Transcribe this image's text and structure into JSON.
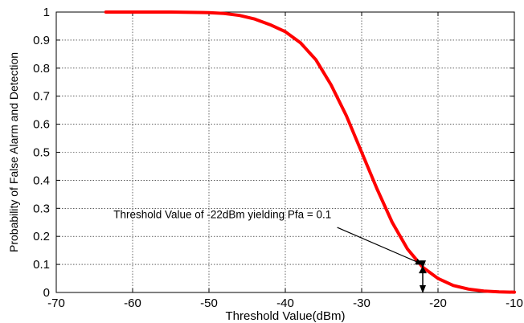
{
  "chart_data": {
    "type": "line",
    "title": "",
    "xlabel": "Threshold Value(dBm)",
    "ylabel": "Probability of False Alarm and Detection",
    "xlim": [
      -70,
      -10
    ],
    "ylim": [
      0,
      1
    ],
    "xticks": [
      -70,
      -60,
      -50,
      -40,
      -30,
      -20,
      -10
    ],
    "yticks": [
      0,
      0.1,
      0.2,
      0.3,
      0.4,
      0.5,
      0.6,
      0.7,
      0.8,
      0.9,
      1
    ],
    "grid": true,
    "line_color": "#ff0000",
    "series": [
      {
        "x": [
          -63.5,
          -60,
          -55,
          -50,
          -48,
          -46,
          -44,
          -42,
          -40,
          -38,
          -36,
          -34,
          -32,
          -30,
          -28,
          -26,
          -24,
          -22,
          -20,
          -18,
          -16,
          -14,
          -12,
          -10
        ],
        "y": [
          1.0,
          1.0,
          1.0,
          0.998,
          0.995,
          0.988,
          0.975,
          0.955,
          0.93,
          0.89,
          0.83,
          0.74,
          0.63,
          0.5,
          0.37,
          0.25,
          0.155,
          0.09,
          0.05,
          0.025,
          0.012,
          0.005,
          0.002,
          0.001
        ]
      }
    ],
    "annotation": {
      "text": "Threshold Value of -22dBm yielding Pfa = 0.1",
      "text_anchor_x": -62.5,
      "text_anchor_y": 0.265,
      "arrow_start": [
        -33.2,
        0.232
      ],
      "arrow_end": [
        -22,
        0.1
      ],
      "double_arrow_x": -22,
      "double_arrow_y": [
        0,
        0.1
      ]
    }
  }
}
